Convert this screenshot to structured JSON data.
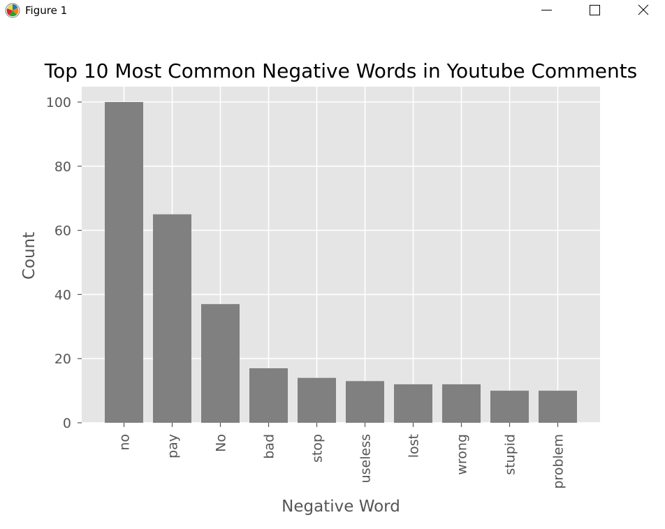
{
  "window": {
    "title": "Figure 1",
    "controls": {
      "minimize_icon": "minimize-icon",
      "maximize_icon": "maximize-icon",
      "close_icon": "close-icon"
    }
  },
  "chart_data": {
    "type": "bar",
    "title": "Top 10 Most Common Negative Words in Youtube Comments",
    "xlabel": "Negative Word",
    "ylabel": "Count",
    "categories": [
      "no",
      "pay",
      "No",
      "bad",
      "stop",
      "useless",
      "lost",
      "wrong",
      "stupid",
      "problem"
    ],
    "values": [
      100,
      65,
      37,
      17,
      14,
      13,
      12,
      12,
      10,
      10
    ],
    "ylim": [
      0,
      105
    ],
    "yticks": [
      0,
      20,
      40,
      60,
      80,
      100
    ],
    "grid": true,
    "style": "ggplot",
    "colors": {
      "bar": "#808080",
      "axes_bg": "#e5e5e5",
      "grid": "#ffffff",
      "tick_text": "#555555",
      "title_text": "#000000"
    }
  }
}
